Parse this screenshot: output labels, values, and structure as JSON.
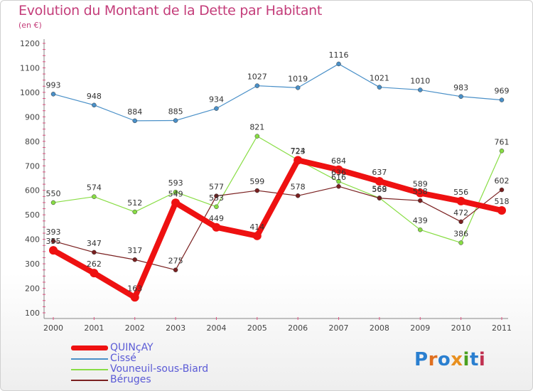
{
  "page": {
    "title": "Evolution du Montant de la Dette par Habitant",
    "unit": "(en €)",
    "logo": "Proxiti",
    "logo_letter_colors": [
      "#2a7fd0",
      "#e07020",
      "#2a7fd0",
      "#e89020",
      "#4aa020",
      "#2a7fd0",
      "#c03050"
    ]
  },
  "chart_data": {
    "type": "line",
    "title": "Evolution du Montant de la Dette par Habitant",
    "subtitle": "(en €)",
    "xlabel": "",
    "ylabel": "",
    "x": [
      "2000",
      "2001",
      "2002",
      "2003",
      "2004",
      "2005",
      "2006",
      "2007",
      "2008",
      "2009",
      "2010",
      "2011"
    ],
    "ylim": [
      100,
      1200
    ],
    "yticks": [
      100,
      200,
      300,
      400,
      500,
      600,
      700,
      800,
      900,
      1000,
      1100,
      1200
    ],
    "grid": false,
    "legend_position": "bottom-left",
    "series": [
      {
        "name": "QUINçAY",
        "color": "#ee1111",
        "values": [
          355,
          262,
          163,
          549,
          449,
          414,
          723,
          684,
          637,
          589,
          556,
          518
        ],
        "labels": [
          "355",
          "262",
          "163",
          "549",
          "449",
          "414",
          "723",
          "684",
          "637",
          "589",
          "556",
          "518"
        ]
      },
      {
        "name": "Cissé",
        "color": "#4a90c8",
        "values": [
          993,
          948,
          884,
          885,
          934,
          1027,
          1019,
          1116,
          1021,
          1010,
          983,
          969
        ],
        "labels": [
          "993",
          "948",
          "884",
          "885",
          "934",
          "1027",
          "1019",
          "1116",
          "1021",
          "1010",
          "983",
          "969"
        ]
      },
      {
        "name": "Vouneuil-sous-Biard",
        "color": "#88dd44",
        "values": [
          550,
          574,
          512,
          593,
          533,
          821,
          724,
          636,
          569,
          439,
          386,
          761
        ],
        "labels": [
          "550",
          "574",
          "512",
          "593",
          "533",
          "821",
          "724",
          "636",
          "569",
          "439",
          "386",
          "761"
        ]
      },
      {
        "name": "Béruges",
        "color": "#7a2020",
        "values": [
          393,
          347,
          317,
          275,
          577,
          599,
          578,
          616,
          568,
          558,
          472,
          602
        ],
        "labels": [
          "393",
          "347",
          "317",
          "275",
          "577",
          "599",
          "578",
          "616",
          "568",
          "558",
          "472",
          "602"
        ]
      }
    ]
  }
}
